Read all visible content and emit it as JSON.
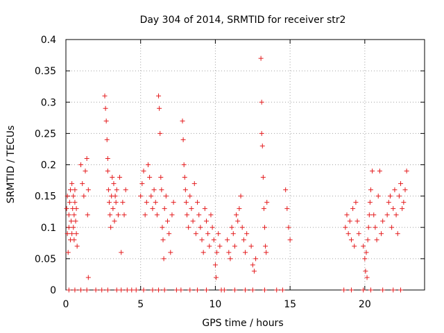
{
  "chart_data": {
    "type": "scatter",
    "title": "Day 304 of 2014, SRMTID for receiver str2",
    "xlabel": "GPS time / hours",
    "ylabel": "SRMTID / TECUs",
    "xlim": [
      0,
      24
    ],
    "ylim": [
      0,
      0.4
    ],
    "xticks": [
      0,
      5,
      10,
      15,
      20
    ],
    "xtick_labels": [
      "0",
      "5",
      "10",
      "15",
      "20"
    ],
    "yticks": [
      0,
      0.05,
      0.1,
      0.15,
      0.2,
      0.25,
      0.3,
      0.35,
      0.4
    ],
    "ytick_labels": [
      "0",
      "0.05",
      "0.1",
      "0.15",
      "0.2",
      "0.25",
      "0.3",
      "0.35",
      "0.4"
    ],
    "grid": true,
    "marker": "+",
    "series": [
      {
        "name": "SRMTID",
        "color": "#e41a1c",
        "x": [
          0.05,
          0.1,
          0.1,
          0.15,
          0.2,
          0.2,
          0.25,
          0.3,
          0.3,
          0.35,
          0.4,
          0.4,
          0.45,
          0.5,
          0.5,
          0.55,
          0.55,
          0.6,
          0.6,
          0.65,
          0.7,
          0.7,
          0.75,
          1.0,
          1.1,
          1.2,
          1.3,
          1.4,
          1.45,
          1.5,
          1.5,
          2.6,
          2.65,
          2.7,
          2.75,
          2.8,
          2.8,
          2.85,
          2.9,
          2.95,
          3.0,
          3.05,
          3.1,
          3.15,
          3.2,
          3.25,
          3.3,
          3.35,
          3.4,
          3.5,
          3.6,
          3.7,
          3.8,
          3.9,
          4.0,
          5.0,
          5.1,
          5.2,
          5.3,
          5.4,
          5.5,
          5.6,
          5.7,
          5.8,
          5.9,
          6.0,
          6.1,
          6.2,
          6.25,
          6.3,
          6.35,
          6.4,
          6.45,
          6.5,
          6.55,
          6.6,
          6.7,
          6.8,
          6.9,
          7.0,
          7.1,
          7.2,
          7.8,
          7.85,
          7.9,
          7.95,
          8.0,
          8.05,
          8.1,
          8.2,
          8.3,
          8.4,
          8.5,
          8.6,
          8.7,
          8.8,
          8.9,
          9.0,
          9.1,
          9.2,
          9.3,
          9.4,
          9.5,
          9.6,
          9.7,
          9.8,
          9.9,
          10.0,
          10.05,
          10.1,
          10.2,
          10.3,
          10.8,
          10.9,
          11.0,
          11.1,
          11.2,
          11.3,
          11.4,
          11.5,
          11.6,
          11.7,
          11.8,
          11.9,
          12.0,
          12.1,
          12.4,
          12.5,
          12.6,
          12.7,
          13.05,
          13.1,
          13.1,
          13.15,
          13.2,
          13.25,
          13.3,
          13.35,
          13.4,
          13.45,
          14.7,
          14.8,
          14.9,
          15.0,
          18.7,
          18.8,
          18.9,
          19.0,
          19.1,
          19.2,
          19.3,
          19.4,
          19.5,
          19.6,
          19.9,
          20.0,
          20.05,
          20.1,
          20.15,
          20.2,
          20.25,
          20.3,
          20.35,
          20.4,
          20.5,
          20.6,
          20.7,
          20.8,
          20.9,
          21.0,
          21.1,
          21.2,
          21.5,
          21.6,
          21.7,
          21.8,
          21.9,
          22.0,
          22.1,
          22.2,
          22.3,
          22.4,
          22.5,
          22.6,
          22.7,
          22.8,
          0.2,
          0.6,
          1.0,
          1.4,
          2.0,
          2.4,
          2.8,
          3.4,
          3.7,
          4.1,
          4.4,
          4.7,
          5.2,
          5.8,
          6.2,
          6.6,
          7.4,
          7.7,
          8.3,
          8.8,
          9.4,
          10.4,
          10.6,
          11.3,
          12.0,
          12.5,
          13.3,
          14.1,
          14.5,
          18.6,
          19.1,
          19.9,
          20.4,
          21.2,
          21.9,
          22.4
        ],
        "y": [
          0.13,
          0.09,
          0.15,
          0.06,
          0.12,
          0.1,
          0.14,
          0.08,
          0.16,
          0.11,
          0.17,
          0.09,
          0.13,
          0.15,
          0.1,
          0.12,
          0.08,
          0.16,
          0.14,
          0.11,
          0.09,
          0.13,
          0.07,
          0.2,
          0.17,
          0.15,
          0.19,
          0.21,
          0.12,
          0.02,
          0.16,
          0.31,
          0.29,
          0.27,
          0.24,
          0.21,
          0.19,
          0.16,
          0.14,
          0.12,
          0.1,
          0.15,
          0.18,
          0.13,
          0.17,
          0.11,
          0.15,
          0.14,
          0.16,
          0.12,
          0.18,
          0.06,
          0.14,
          0.12,
          0.16,
          0.15,
          0.17,
          0.19,
          0.12,
          0.14,
          0.2,
          0.18,
          0.15,
          0.13,
          0.16,
          0.14,
          0.12,
          0.31,
          0.29,
          0.25,
          0.18,
          0.16,
          0.1,
          0.08,
          0.05,
          0.13,
          0.15,
          0.11,
          0.09,
          0.06,
          0.12,
          0.14,
          0.27,
          0.24,
          0.2,
          0.18,
          0.16,
          0.14,
          0.12,
          0.1,
          0.15,
          0.13,
          0.11,
          0.17,
          0.09,
          0.14,
          0.12,
          0.1,
          0.08,
          0.06,
          0.13,
          0.11,
          0.09,
          0.07,
          0.12,
          0.1,
          0.08,
          0.04,
          0.02,
          0.06,
          0.09,
          0.07,
          0.08,
          0.06,
          0.05,
          0.1,
          0.09,
          0.07,
          0.12,
          0.11,
          0.13,
          0.15,
          0.1,
          0.08,
          0.06,
          0.09,
          0.07,
          0.04,
          0.03,
          0.05,
          0.37,
          0.3,
          0.25,
          0.23,
          0.18,
          0.13,
          0.1,
          0.07,
          0.06,
          0.14,
          0.16,
          0.13,
          0.1,
          0.08,
          0.1,
          0.12,
          0.09,
          0.11,
          0.08,
          0.13,
          0.07,
          0.14,
          0.11,
          0.09,
          0.07,
          0.05,
          0.03,
          0.06,
          0.02,
          0.08,
          0.1,
          0.12,
          0.14,
          0.16,
          0.19,
          0.12,
          0.1,
          0.08,
          0.15,
          0.19,
          0.09,
          0.11,
          0.12,
          0.14,
          0.15,
          0.1,
          0.13,
          0.16,
          0.12,
          0.09,
          0.15,
          0.17,
          0.13,
          0.14,
          0.16,
          0.19,
          0.0,
          0.0,
          0.0,
          0.0,
          0.0,
          0.0,
          0.0,
          0.0,
          0.0,
          0.0,
          0.0,
          0.0,
          0.0,
          0.0,
          0.0,
          0.0,
          0.0,
          0.0,
          0.0,
          0.0,
          0.0,
          0.0,
          0.0,
          0.0,
          0.0,
          0.0,
          0.0,
          0.0,
          0.0,
          0.0,
          0.0,
          0.0,
          0.0,
          0.0,
          0.0,
          0.0
        ]
      }
    ]
  }
}
